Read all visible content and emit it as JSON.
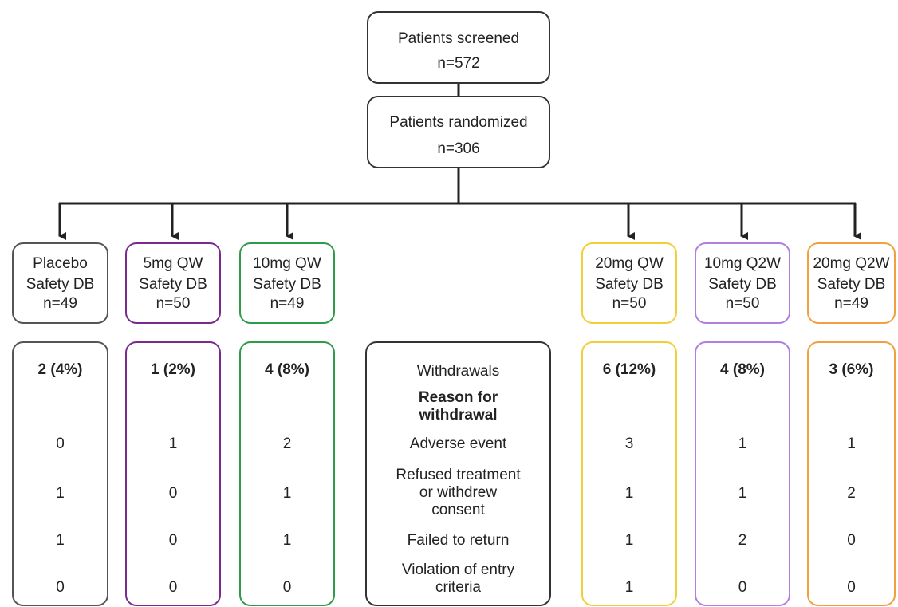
{
  "screened": {
    "label": "Patients screened",
    "n": "n=572"
  },
  "randomized": {
    "label": "Patients randomized",
    "n": "n=306"
  },
  "arms": [
    {
      "name": "Placebo",
      "db": "Safety DB",
      "n": "n=49",
      "color": "#555555",
      "withdrawals": "2 (4%)",
      "adverse": "0",
      "refused": "1",
      "failed": "1",
      "violation": "0"
    },
    {
      "name": "5mg QW",
      "db": "Safety DB",
      "n": "n=50",
      "color": "#7a2a8c",
      "withdrawals": "1 (2%)",
      "adverse": "1",
      "refused": "0",
      "failed": "0",
      "violation": "0"
    },
    {
      "name": "10mg QW",
      "db": "Safety DB",
      "n": "n=49",
      "color": "#2e9a4a",
      "withdrawals": "4 (8%)",
      "adverse": "2",
      "refused": "1",
      "failed": "1",
      "violation": "0"
    },
    {
      "name": "20mg QW",
      "db": "Safety DB",
      "n": "n=50",
      "color": "#f2cf3a",
      "withdrawals": "6 (12%)",
      "adverse": "3",
      "refused": "1",
      "failed": "1",
      "violation": "1"
    },
    {
      "name": "10mg Q2W",
      "db": "Safety DB",
      "n": "n=50",
      "color": "#b07fe0",
      "withdrawals": "4 (8%)",
      "adverse": "1",
      "refused": "1",
      "failed": "2",
      "violation": "0"
    },
    {
      "name": "20mg Q2W",
      "db": "Safety DB",
      "n": "n=49",
      "color": "#f0a040",
      "withdrawals": "3 (6%)",
      "adverse": "1",
      "refused": "2",
      "failed": "0",
      "violation": "0"
    }
  ],
  "legend": {
    "withdrawals": "Withdrawals",
    "reason_line1": "Reason for",
    "reason_line2": "withdrawal",
    "adverse": "Adverse event",
    "refused_line1": "Refused treatment",
    "refused_line2": "or withdrew",
    "refused_line3": "consent",
    "failed": "Failed to return",
    "violation_line1": "Violation of entry",
    "violation_line2": "criteria"
  }
}
